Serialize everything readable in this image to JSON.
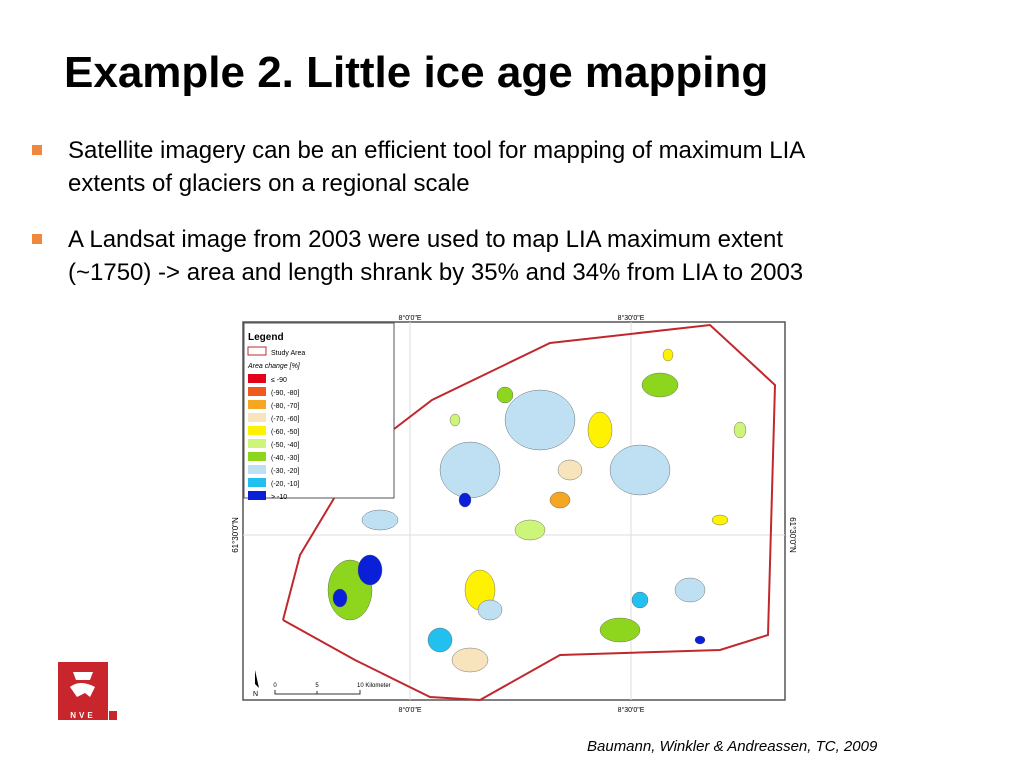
{
  "slide": {
    "title": "Example 2. Little ice age mapping",
    "bullets": [
      {
        "line1": "Satellite imagery can be an efficient tool for mapping of maximum LIA",
        "line2": "extents of glaciers on a regional scale"
      },
      {
        "line1": "A Landsat image from 2003 were used to map LIA maximum extent",
        "line2": "(~1750) -> area and length shrank by 35% and 34% from LIA to 2003"
      }
    ],
    "citation": "Baumann, Winkler & Andreassen, TC, 2009",
    "bullet_color": "#f0873c",
    "logo_text": "NVE"
  },
  "map": {
    "legend_title": "Legend",
    "study_area_label": "Study Area",
    "area_change_label": "Area change [%]",
    "legend_items": [
      {
        "label": "≤ -90",
        "color": "#e3001b"
      },
      {
        "label": "(-90, -80]",
        "color": "#f05a1e"
      },
      {
        "label": "(-80, -70]",
        "color": "#f5a623"
      },
      {
        "label": "(-70, -60]",
        "color": "#f7e3bc"
      },
      {
        "label": "(-60, -50]",
        "color": "#fff200"
      },
      {
        "label": "(-50, -40]",
        "color": "#cdf57a"
      },
      {
        "label": "(-40, -30]",
        "color": "#8ed61e"
      },
      {
        "label": "(-30, -20]",
        "color": "#bfe0f2"
      },
      {
        "label": "(-20, -10]",
        "color": "#22c0ee"
      },
      {
        "label": "> -10",
        "color": "#0a1fd8"
      }
    ],
    "top_labels": [
      "8°0'0\"E",
      "8°30'0\"E"
    ],
    "bottom_labels": [
      "8°0'0\"E",
      "8°30'0\"E"
    ],
    "left_label": "61°30'0\"N",
    "right_label": "61°30'0\"N",
    "scale_ticks": [
      "0",
      "5",
      "10 Kilometer"
    ],
    "north_label": "N",
    "study_area_color": "#c0282d"
  }
}
